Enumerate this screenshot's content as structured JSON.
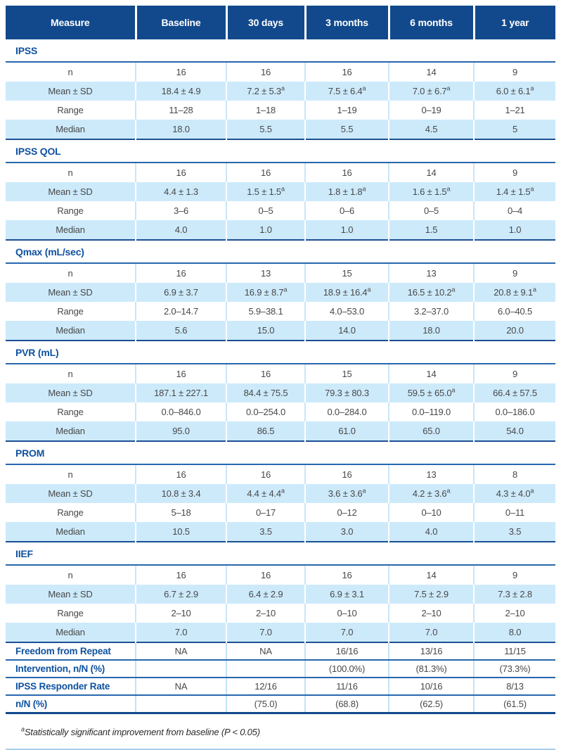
{
  "table": {
    "columns": [
      "Measure",
      "Baseline",
      "30 days",
      "3 months",
      "6 months",
      "1 year"
    ],
    "sections": [
      {
        "title": "IPSS",
        "rows": [
          {
            "label": "n",
            "values": [
              "16",
              "16",
              "16",
              "14",
              "9"
            ]
          },
          {
            "label": "Mean ± SD",
            "values": [
              "18.4 ± 4.9",
              "7.2 ± 5.3^a",
              "7.5 ± 6.4^a",
              "7.0 ± 6.7^a",
              "6.0 ± 6.1^a"
            ]
          },
          {
            "label": "Range",
            "values": [
              "11–28",
              "1–18",
              "1–19",
              "0–19",
              "1–21"
            ]
          },
          {
            "label": "Median",
            "values": [
              "18.0",
              "5.5",
              "5.5",
              "4.5",
              "5"
            ]
          }
        ]
      },
      {
        "title": "IPSS QOL",
        "rows": [
          {
            "label": "n",
            "values": [
              "16",
              "16",
              "16",
              "14",
              "9"
            ]
          },
          {
            "label": "Mean ± SD",
            "values": [
              "4.4 ± 1.3",
              "1.5 ± 1.5^a",
              "1.8 ± 1.8^a",
              "1.6 ± 1.5^a",
              "1.4 ± 1.5^a"
            ]
          },
          {
            "label": "Range",
            "values": [
              "3–6",
              "0–5",
              "0–6",
              "0–5",
              "0–4"
            ]
          },
          {
            "label": "Median",
            "values": [
              "4.0",
              "1.0",
              "1.0",
              "1.5",
              "1.0"
            ]
          }
        ]
      },
      {
        "title": "Qmax (mL/sec)",
        "rows": [
          {
            "label": "n",
            "values": [
              "16",
              "13",
              "15",
              "13",
              "9"
            ]
          },
          {
            "label": "Mean ± SD",
            "values": [
              "6.9 ± 3.7",
              "16.9 ± 8.7^a",
              "18.9 ± 16.4^a",
              "16.5 ± 10.2^a",
              "20.8 ± 9.1^a"
            ]
          },
          {
            "label": "Range",
            "values": [
              "2.0–14.7",
              "5.9–38.1",
              "4.0–53.0",
              "3.2–37.0",
              "6.0–40.5"
            ]
          },
          {
            "label": "Median",
            "values": [
              "5.6",
              "15.0",
              "14.0",
              "18.0",
              "20.0"
            ]
          }
        ]
      },
      {
        "title": "PVR (mL)",
        "rows": [
          {
            "label": "n",
            "values": [
              "16",
              "16",
              "15",
              "14",
              "9"
            ]
          },
          {
            "label": "Mean ± SD",
            "values": [
              "187.1 ± 227.1",
              "84.4 ± 75.5",
              "79.3 ± 80.3",
              "59.5 ± 65.0^a",
              "66.4 ± 57.5"
            ]
          },
          {
            "label": "Range",
            "values": [
              "0.0–846.0",
              "0.0–254.0",
              "0.0–284.0",
              "0.0–119.0",
              "0.0–186.0"
            ]
          },
          {
            "label": "Median",
            "values": [
              "95.0",
              "86.5",
              "61.0",
              "65.0",
              "54.0"
            ]
          }
        ]
      },
      {
        "title": "PROM",
        "rows": [
          {
            "label": "n",
            "values": [
              "16",
              "16",
              "16",
              "13",
              "8"
            ]
          },
          {
            "label": "Mean ± SD",
            "values": [
              "10.8 ± 3.4",
              "4.4 ± 4.4^a",
              "3.6 ± 3.6^a",
              "4.2 ± 3.6^a",
              "4.3 ± 4.0^a"
            ]
          },
          {
            "label": "Range",
            "values": [
              "5–18",
              "0–17",
              "0–12",
              "0–10",
              "0–11"
            ]
          },
          {
            "label": "Median",
            "values": [
              "10.5",
              "3.5",
              "3.0",
              "4.0",
              "3.5"
            ]
          }
        ]
      },
      {
        "title": "IIEF",
        "rows": [
          {
            "label": "n",
            "values": [
              "16",
              "16",
              "16",
              "14",
              "9"
            ]
          },
          {
            "label": "Mean ± SD",
            "values": [
              "6.7 ± 2.9",
              "6.4 ± 2.9",
              "6.9 ± 3.1",
              "7.5 ± 2.9",
              "7.3 ± 2.8"
            ]
          },
          {
            "label": "Range",
            "values": [
              "2–10",
              "2–10",
              "0–10",
              "2–10",
              "2–10"
            ]
          },
          {
            "label": "Median",
            "values": [
              "7.0",
              "7.0",
              "7.0",
              "7.0",
              "8.0"
            ]
          }
        ]
      }
    ],
    "summary_rows": [
      {
        "label": "Freedom from Repeat",
        "values": [
          "NA",
          "NA",
          "16/16",
          "13/16",
          "11/15"
        ]
      },
      {
        "label": "Intervention, n/N (%)",
        "values": [
          "",
          "",
          "(100.0%)",
          "(81.3%)",
          "(73.3%)"
        ]
      },
      {
        "label": "IPSS Responder Rate",
        "values": [
          "NA",
          "12/16",
          "11/16",
          "10/16",
          "8/13"
        ]
      },
      {
        "label": "n/N (%)",
        "values": [
          "",
          "(75.0)",
          "(68.8)",
          "(62.5)",
          "(61.5)"
        ]
      }
    ]
  },
  "footnote": {
    "marker": "a",
    "text": "Statistically significant improvement from baseline (P < 0.05)"
  },
  "colors": {
    "header_bg": "#11498c",
    "section_title": "#0d519f",
    "stripe": "#cdeafb",
    "rule": "#2767ad",
    "table_bottom": "#11498c",
    "page_bottom_rule": "#a9cfe9",
    "data_text": "#484848"
  }
}
